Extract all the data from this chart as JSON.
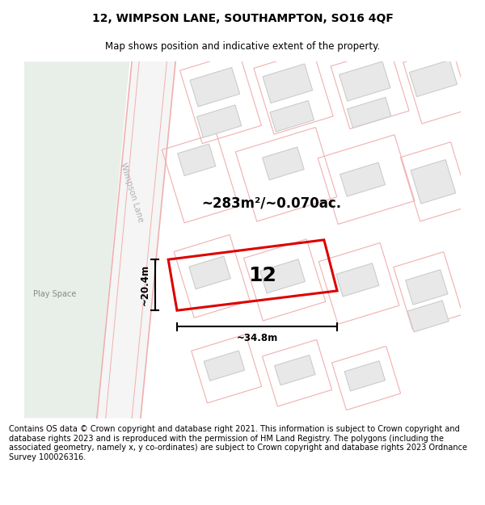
{
  "title": "12, WIMPSON LANE, SOUTHAMPTON, SO16 4QF",
  "subtitle": "Map shows position and indicative extent of the property.",
  "footer": "Contains OS data © Crown copyright and database right 2021. This information is subject to Crown copyright and database rights 2023 and is reproduced with the permission of HM Land Registry. The polygons (including the associated geometry, namely x, y co-ordinates) are subject to Crown copyright and database rights 2023 Ordnance Survey 100026316.",
  "area_label": "~283m²/~0.070ac.",
  "property_number": "12",
  "dim_width": "~34.8m",
  "dim_height": "~20.4m",
  "street_label": "Wimpson Lane",
  "background_color": "#ffffff",
  "building_fill": "#e8e8e8",
  "building_edge": "#cccccc",
  "plot_edge_color": "#f0b0b0",
  "road_edge_color": "#f0b0b0",
  "property_edge": "#dd0000",
  "green_area": "#e8efe8",
  "title_fontsize": 10,
  "subtitle_fontsize": 8.5,
  "footer_fontsize": 7.0,
  "street_label_color": "#b0b0b0"
}
